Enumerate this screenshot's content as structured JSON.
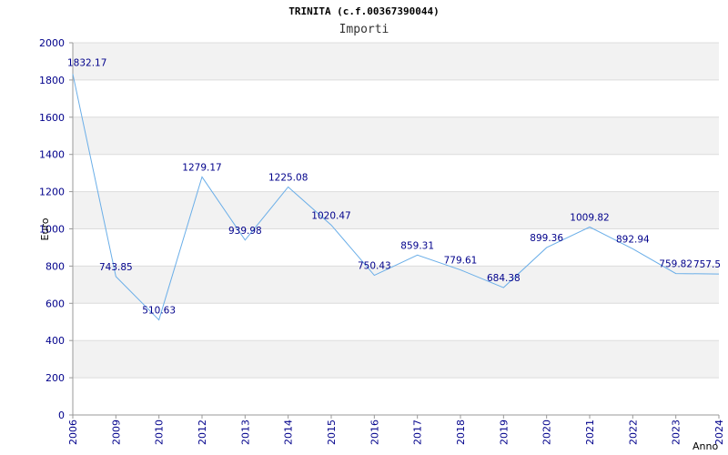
{
  "chart_data": {
    "type": "line",
    "title": "TRINITA (c.f.00367390044)",
    "subtitle": "Importi",
    "xlabel": "Anno",
    "ylabel": "Euro",
    "categories": [
      "2006",
      "2009",
      "2010",
      "2012",
      "2013",
      "2014",
      "2015",
      "2016",
      "2017",
      "2018",
      "2019",
      "2020",
      "2021",
      "2022",
      "2023",
      "2024"
    ],
    "series": [
      {
        "values": [
          1832.17,
          743.85,
          510.63,
          1279.17,
          939.98,
          1225.08,
          1020.47,
          750.43,
          859.31,
          779.61,
          684.38,
          899.36,
          1009.82,
          892.94,
          759.82,
          757.5
        ],
        "labels": [
          "1832.17",
          "743.85",
          "510.63",
          "1279.17",
          "939.98",
          "1225.08",
          "1020.47",
          "750.43",
          "859.31",
          "779.61",
          "684.38",
          "899.36",
          "1009.82",
          "892.94",
          "759.82",
          "757.5"
        ]
      }
    ],
    "ylim": [
      0,
      2000
    ],
    "yticks": [
      0,
      200,
      400,
      600,
      800,
      1000,
      1200,
      1400,
      1600,
      1800,
      2000
    ],
    "grid": true,
    "line_color": "#6aaee8",
    "band_color": "#f2f2f2",
    "tick_color": "#00008b"
  }
}
